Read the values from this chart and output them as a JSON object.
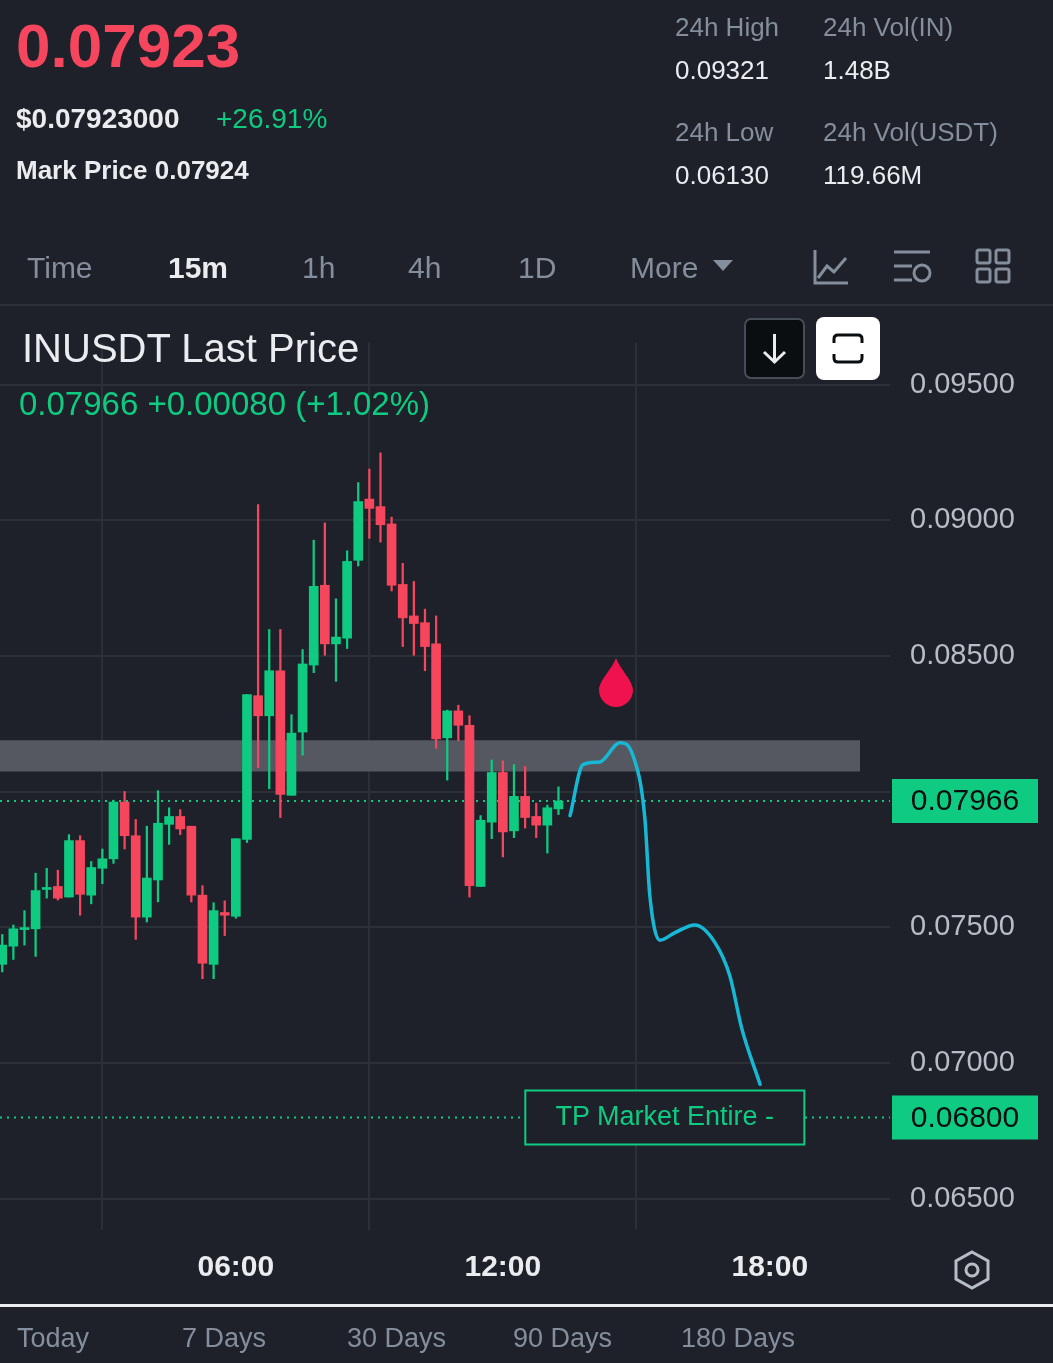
{
  "chart_data": {
    "type": "candlestick",
    "title": "INUSDT Last Price",
    "subtitle": "0.07966  +0.00080 (+1.02%)",
    "x": [
      0.75,
      1,
      1.25,
      1.5,
      1.75,
      2,
      2.25,
      2.5,
      2.75,
      3,
      3.25,
      3.5,
      3.75,
      4,
      4.25,
      4.5,
      4.75,
      5,
      5.25,
      5.5,
      5.75,
      6,
      6.25,
      6.5,
      6.75,
      7,
      7.25,
      7.5,
      7.75,
      8,
      8.25,
      8.5,
      8.75,
      9,
      9.25,
      9.5,
      9.75,
      10,
      10.25,
      10.5,
      10.75,
      11,
      11.25,
      11.5,
      11.75,
      12,
      12.25,
      12.5,
      12.75,
      13,
      13.25
    ],
    "ohlc": [
      [
        0.07364,
        0.07474,
        0.07336,
        0.07435
      ],
      [
        0.07431,
        0.07509,
        0.07382,
        0.07495
      ],
      [
        0.07492,
        0.07562,
        0.07435,
        0.07499
      ],
      [
        0.07495,
        0.077,
        0.07393,
        0.07636
      ],
      [
        0.0764,
        0.07718,
        0.07608,
        0.07647
      ],
      [
        0.07651,
        0.07711,
        0.07601,
        0.07608
      ],
      [
        0.07612,
        0.07842,
        0.07612,
        0.0782
      ],
      [
        0.0782,
        0.07838,
        0.07545,
        0.07622
      ],
      [
        0.07619,
        0.07743,
        0.07587,
        0.07721
      ],
      [
        0.07718,
        0.07789,
        0.07661,
        0.07753
      ],
      [
        0.07753,
        0.07969,
        0.07736,
        0.07962
      ],
      [
        0.07962,
        0.08001,
        0.07789,
        0.07838
      ],
      [
        0.07838,
        0.07898,
        0.07456,
        0.07538
      ],
      [
        0.07538,
        0.07873,
        0.0752,
        0.07682
      ],
      [
        0.07675,
        0.08004,
        0.07594,
        0.07884
      ],
      [
        0.0788,
        0.07941,
        0.07806,
        0.07909
      ],
      [
        0.07909,
        0.07934,
        0.07842,
        0.07863
      ],
      [
        0.07873,
        0.07873,
        0.07594,
        0.07619
      ],
      [
        0.07619,
        0.07654,
        0.07311,
        0.07368
      ],
      [
        0.07364,
        0.07591,
        0.07311,
        0.07562
      ],
      [
        0.07555,
        0.07598,
        0.0747,
        0.07545
      ],
      [
        0.07541,
        0.07827,
        0.07534,
        0.07827
      ],
      [
        0.07824,
        0.08358,
        0.07813,
        0.08358
      ],
      [
        0.08354,
        0.09058,
        0.08089,
        0.0828
      ],
      [
        0.0828,
        0.08598,
        0.08011,
        0.08446
      ],
      [
        0.08446,
        0.08598,
        0.07905,
        0.0799
      ],
      [
        0.07987,
        0.08284,
        0.07987,
        0.08216
      ],
      [
        0.0822,
        0.08524,
        0.08135,
        0.08471
      ],
      [
        0.08467,
        0.08927,
        0.08439,
        0.08757
      ],
      [
        0.08761,
        0.08991,
        0.08503,
        0.08545
      ],
      [
        0.08545,
        0.08711,
        0.08407,
        0.0857
      ],
      [
        0.08566,
        0.08888,
        0.08528,
        0.08849
      ],
      [
        0.08853,
        0.09139,
        0.08832,
        0.09069
      ],
      [
        0.09079,
        0.09189,
        0.08934,
        0.09044
      ],
      [
        0.09051,
        0.09249,
        0.0892,
        0.08984
      ],
      [
        0.08987,
        0.09012,
        0.0874,
        0.08761
      ],
      [
        0.08764,
        0.08842,
        0.08535,
        0.08641
      ],
      [
        0.08648,
        0.08775,
        0.08503,
        0.0862
      ],
      [
        0.08623,
        0.08673,
        0.08446,
        0.08535
      ],
      [
        0.08545,
        0.08648,
        0.0816,
        0.08195
      ],
      [
        0.08199,
        0.08301,
        0.08043,
        0.08298
      ],
      [
        0.08298,
        0.08319,
        0.08188,
        0.08245
      ],
      [
        0.08245,
        0.0828,
        0.07612,
        0.07654
      ],
      [
        0.07651,
        0.07912,
        0.07651,
        0.07895
      ],
      [
        0.07888,
        0.08117,
        0.07827,
        0.08071
      ],
      [
        0.08071,
        0.08114,
        0.0776,
        0.07852
      ],
      [
        0.07856,
        0.081,
        0.07831,
        0.07983
      ],
      [
        0.07983,
        0.08093,
        0.07866,
        0.07905
      ],
      [
        0.07909,
        0.07958,
        0.07831,
        0.07877
      ],
      [
        0.07877,
        0.07951,
        0.07774,
        0.07941
      ],
      [
        0.07937,
        0.08018,
        0.07916,
        0.07966
      ]
    ],
    "colors": [
      "#0ecb81",
      "#0ecb81",
      "#0ecb81",
      "#0ecb81",
      "#0ecb81",
      "#f6465d",
      "#0ecb81",
      "#f6465d",
      "#0ecb81",
      "#0ecb81",
      "#0ecb81",
      "#f6465d",
      "#f6465d",
      "#0ecb81",
      "#0ecb81",
      "#0ecb81",
      "#f6465d",
      "#f6465d",
      "#f6465d",
      "#0ecb81",
      "#f6465d",
      "#0ecb81",
      "#0ecb81",
      "#f6465d",
      "#0ecb81",
      "#f6465d",
      "#0ecb81",
      "#0ecb81",
      "#0ecb81",
      "#f6465d",
      "#0ecb81",
      "#0ecb81",
      "#0ecb81",
      "#f6465d",
      "#f6465d",
      "#f6465d",
      "#f6465d",
      "#f6465d",
      "#f6465d",
      "#f6465d",
      "#0ecb81",
      "#f6465d",
      "#f6465d",
      "#0ecb81",
      "#0ecb81",
      "#f6465d",
      "#0ecb81",
      "#f6465d",
      "#f6465d",
      "#0ecb81",
      "#0ecb81"
    ],
    "series": [
      {
        "type": "line",
        "color": "#16b8d6",
        "x": [
          13.51,
          13.8,
          14.18,
          14.63,
          14.92,
          15.19,
          15.3,
          15.53,
          15.87,
          16.31,
          16.76,
          17.1,
          17.37,
          17.78
        ],
        "values": [
          0.07912,
          0.081,
          0.0811,
          0.08181,
          0.08135,
          0.07905,
          0.07622,
          0.07453,
          0.07481,
          0.07509,
          0.07446,
          0.07322,
          0.07127,
          0.06922
        ]
      }
    ],
    "xlim": [
      0.7,
      20.7
    ],
    "ylim": [
      0.06385,
      0.09656
    ],
    "xticks": [
      {
        "value": 6,
        "label": "06:00"
      },
      {
        "value": 12,
        "label": "12:00"
      },
      {
        "value": 18,
        "label": "18:00"
      }
    ],
    "yticks": [
      {
        "value": 0.065,
        "label": "0.06500"
      },
      {
        "value": 0.07,
        "label": "0.07000"
      },
      {
        "value": 0.075,
        "label": "0.07500"
      },
      {
        "value": 0.08,
        "label": null
      },
      {
        "value": 0.085,
        "label": "0.08500"
      },
      {
        "value": 0.09,
        "label": "0.09000"
      },
      {
        "value": 0.095,
        "label": "0.09500"
      }
    ],
    "grid": true,
    "legend": false,
    "marker": "none",
    "line_style": "solid",
    "ref_lines": [
      {
        "axis": "y",
        "value": 0.07966,
        "label": "0.07966",
        "color": "#0ecb81",
        "line_style": "dotted"
      },
      {
        "axis": "y",
        "value": 0.068,
        "label": "0.06800",
        "color": "#0ecb81",
        "line_style": "dotted"
      }
    ],
    "bands": [
      {
        "axis": "y",
        "from": 0.08075,
        "to": 0.0819,
        "color": "#5b5e66"
      }
    ],
    "annotations": [
      "0.07923",
      "$0.07923000",
      "+26.91%",
      "Mark Price 0.07924",
      "24h High",
      "0.09321",
      "24h Vol(IN)",
      "1.48B",
      "24h Low",
      "0.06130",
      "24h Vol(USDT)",
      "119.66M",
      "Time",
      "15m",
      "1h",
      "4h",
      "1D",
      "More",
      "Today",
      "7 Days",
      "30 Days",
      "90 Days",
      "180 Days",
      {
        "text": "TP Market Entire -",
        "x": 15.64,
        "y": 0.068
      }
    ]
  }
}
